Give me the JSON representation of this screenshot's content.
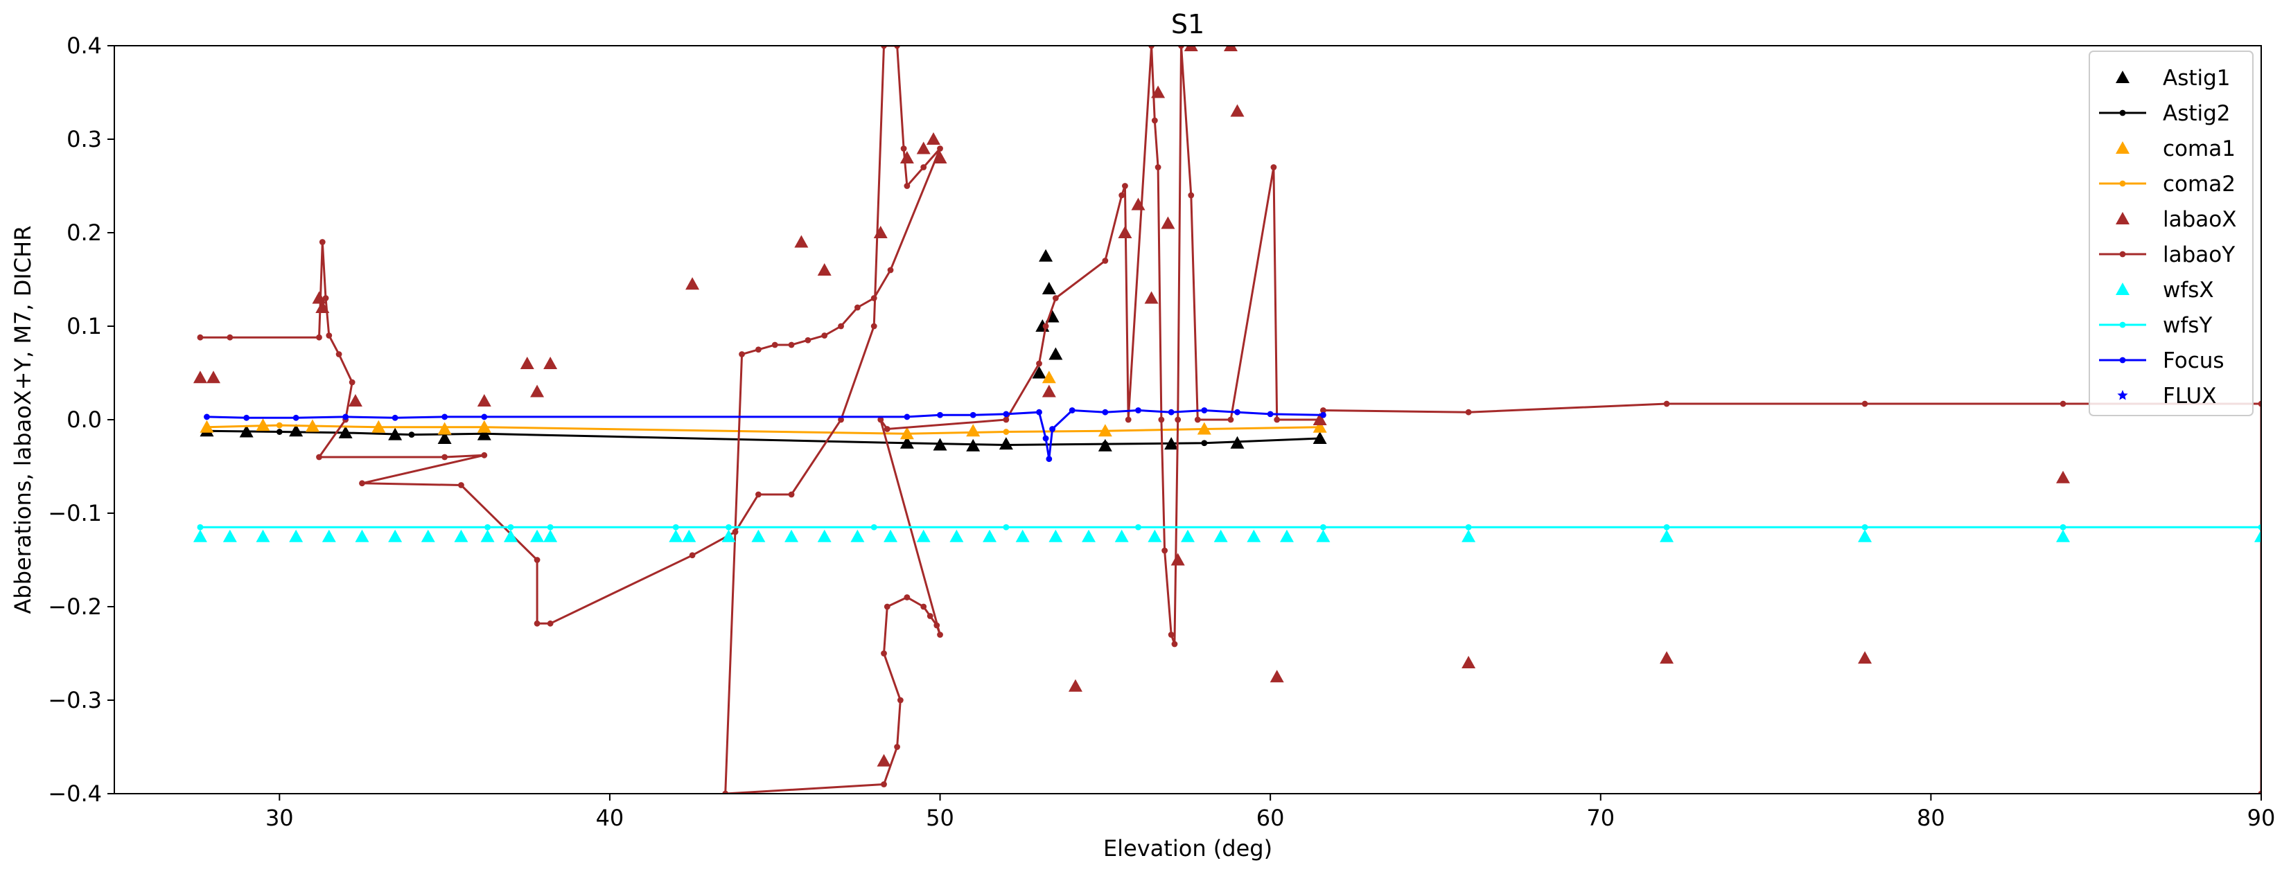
{
  "chart_data": {
    "type": "scatter",
    "title": "S1",
    "xlabel": "Elevation (deg)",
    "ylabel": "Abberations, labaoX+Y, M7, DICHR",
    "xlim": [
      25,
      90
    ],
    "ylim": [
      -0.4,
      0.4
    ],
    "xticks": [
      30,
      40,
      50,
      60,
      70,
      80,
      90
    ],
    "yticks": [
      -0.4,
      -0.3,
      -0.2,
      -0.1,
      0.0,
      0.1,
      0.2,
      0.3,
      0.4
    ],
    "legend_position": "top-right",
    "series": [
      {
        "name": "Astig1",
        "marker": "triangle",
        "line": false,
        "color": "#000000",
        "x": [
          27.8,
          29,
          30.5,
          32,
          33.5,
          35,
          36.2,
          49,
          50,
          51,
          52,
          53.0,
          53.1,
          53.2,
          53.3,
          53.4,
          53.5,
          55,
          57,
          59,
          61.5
        ],
        "y": [
          -0.012,
          -0.013,
          -0.012,
          -0.014,
          -0.016,
          -0.02,
          -0.016,
          -0.025,
          -0.027,
          -0.028,
          -0.026,
          0.05,
          0.1,
          0.175,
          0.14,
          0.11,
          0.07,
          -0.028,
          -0.026,
          -0.025,
          -0.02
        ]
      },
      {
        "name": "Astig2",
        "marker": "dot",
        "line": true,
        "color": "#000000",
        "x": [
          27.8,
          30,
          32,
          34,
          36.2,
          49,
          52,
          55,
          58,
          61.5
        ],
        "y": [
          -0.012,
          -0.013,
          -0.014,
          -0.016,
          -0.015,
          -0.025,
          -0.027,
          -0.026,
          -0.025,
          -0.02
        ]
      },
      {
        "name": "coma1",
        "marker": "triangle",
        "line": false,
        "color": "#ffa500",
        "x": [
          27.8,
          29.5,
          31,
          33,
          35,
          36.2,
          49,
          51,
          53.3,
          55,
          58,
          61.5
        ],
        "y": [
          -0.008,
          -0.006,
          -0.007,
          -0.008,
          -0.01,
          -0.008,
          -0.015,
          -0.012,
          0.045,
          -0.012,
          -0.01,
          -0.008
        ]
      },
      {
        "name": "coma2",
        "marker": "dot",
        "line": true,
        "color": "#ffa500",
        "x": [
          27.8,
          30,
          33,
          36.2,
          49,
          52,
          55,
          58,
          61.5
        ],
        "y": [
          -0.008,
          -0.006,
          -0.008,
          -0.008,
          -0.015,
          -0.013,
          -0.012,
          -0.01,
          -0.008
        ]
      },
      {
        "name": "labaoX",
        "marker": "triangle",
        "line": false,
        "color": "#a52a2a",
        "x": [
          27.6,
          28,
          31.2,
          31.3,
          32.3,
          36.2,
          37.5,
          37.8,
          38.2,
          42.5,
          45.8,
          46.5,
          48.2,
          48.3,
          49.0,
          49.5,
          49.8,
          50.0,
          53.3,
          54.1,
          55.6,
          56.0,
          56.4,
          56.6,
          56.9,
          57.2,
          57.6,
          58.8,
          59.0,
          60.2,
          61.5,
          66,
          72,
          78,
          84
        ],
        "y": [
          0.045,
          0.045,
          0.13,
          0.12,
          0.02,
          0.02,
          0.06,
          0.03,
          0.06,
          0.145,
          0.19,
          0.16,
          0.2,
          -0.365,
          0.28,
          0.29,
          0.3,
          0.28,
          0.03,
          -0.285,
          0.2,
          0.23,
          0.13,
          0.35,
          0.21,
          -0.15,
          0.4,
          0.4,
          0.33,
          -0.275,
          0.0,
          -0.26,
          -0.255,
          -0.255,
          -0.062
        ]
      },
      {
        "name": "labaoY",
        "marker": "dot",
        "line": true,
        "color": "#a52a2a",
        "x": [
          27.6,
          28.5,
          31.2,
          31.3,
          31.4,
          31.5,
          31.8,
          32.2,
          32.0,
          31.2,
          35,
          36.2,
          32.5,
          35.5,
          37.8,
          37.8,
          38.2,
          42.5,
          43.8,
          44.5,
          45.5,
          47,
          48,
          48.3,
          48.7,
          48.9,
          49.0,
          49.5,
          50.0,
          48.5,
          48.0,
          47.5,
          47.0,
          46.5,
          46.0,
          45.5,
          45.0,
          44.5,
          44.0,
          43.5,
          48.3,
          48.7,
          48.8,
          48.3,
          48.4,
          49.0,
          49.5,
          49.7,
          49.9,
          50.0,
          48.2,
          48.4,
          52,
          53.0,
          53.2,
          53.5,
          55.0,
          55.5,
          55.6,
          55.7,
          56.4,
          56.5,
          56.6,
          56.7,
          56.8,
          57.0,
          57.1,
          57.2,
          57.3,
          57.6,
          57.8,
          58.8,
          60.1,
          60.2,
          61.5,
          61.6,
          66,
          72,
          78,
          84,
          90,
          90
        ],
        "y": [
          0.088,
          0.088,
          0.088,
          0.19,
          0.13,
          0.09,
          0.07,
          0.04,
          0.0,
          -0.04,
          -0.04,
          -0.038,
          -0.068,
          -0.07,
          -0.15,
          -0.218,
          -0.218,
          -0.145,
          -0.12,
          -0.08,
          -0.08,
          0.0,
          0.1,
          0.4,
          0.4,
          0.29,
          0.25,
          0.27,
          0.29,
          0.16,
          0.13,
          0.12,
          0.1,
          0.09,
          0.085,
          0.08,
          0.08,
          0.075,
          0.07,
          -0.4,
          -0.39,
          -0.35,
          -0.3,
          -0.25,
          -0.2,
          -0.19,
          -0.2,
          -0.21,
          -0.22,
          -0.23,
          0.0,
          -0.01,
          0.0,
          0.06,
          0.1,
          0.13,
          0.17,
          0.24,
          0.25,
          0.0,
          0.4,
          0.32,
          0.27,
          0.0,
          -0.14,
          -0.23,
          -0.24,
          0.0,
          0.4,
          0.24,
          0.0,
          0.0,
          0.27,
          0.0,
          0.0,
          0.01,
          0.008,
          0.017,
          0.017,
          0.017,
          0.017,
          -0.4
        ]
      },
      {
        "name": "wfsX",
        "marker": "triangle",
        "line": false,
        "color": "#00ffff",
        "x": [
          27.6,
          28.5,
          29.5,
          30.5,
          31.5,
          32.5,
          33.5,
          34.5,
          35.5,
          36.3,
          37.0,
          37.8,
          38.2,
          42.0,
          42.4,
          43.6,
          44.5,
          45.5,
          46.5,
          47.5,
          48.5,
          49.5,
          50.5,
          51.5,
          52.5,
          53.5,
          54.5,
          55.5,
          56.5,
          57.5,
          58.5,
          59.5,
          60.5,
          61.6,
          66,
          72,
          78,
          84,
          90
        ],
        "y": [
          -0.125,
          -0.125,
          -0.125,
          -0.125,
          -0.125,
          -0.125,
          -0.125,
          -0.125,
          -0.125,
          -0.125,
          -0.125,
          -0.125,
          -0.125,
          -0.125,
          -0.125,
          -0.125,
          -0.125,
          -0.125,
          -0.125,
          -0.125,
          -0.125,
          -0.125,
          -0.125,
          -0.125,
          -0.125,
          -0.125,
          -0.125,
          -0.125,
          -0.125,
          -0.125,
          -0.125,
          -0.125,
          -0.125,
          -0.125,
          -0.125,
          -0.125,
          -0.125,
          -0.125,
          -0.125
        ]
      },
      {
        "name": "wfsY",
        "marker": "dot",
        "line": true,
        "color": "#00ffff",
        "x": [
          27.6,
          36.3,
          37.0,
          38.2,
          42.0,
          43.6,
          48,
          52,
          56,
          61.6,
          66,
          72,
          78,
          84,
          90
        ],
        "y": [
          -0.115,
          -0.115,
          -0.115,
          -0.115,
          -0.115,
          -0.115,
          -0.115,
          -0.115,
          -0.115,
          -0.115,
          -0.115,
          -0.115,
          -0.115,
          -0.115,
          -0.115
        ]
      },
      {
        "name": "Focus",
        "marker": "dot",
        "line": true,
        "color": "#0000ff",
        "x": [
          27.8,
          29,
          30.5,
          32,
          33.5,
          35,
          36.2,
          49,
          50,
          51,
          52,
          53.0,
          53.2,
          53.3,
          53.4,
          54,
          55,
          56,
          57,
          58,
          59,
          60,
          61.6
        ],
        "y": [
          0.003,
          0.002,
          0.002,
          0.003,
          0.002,
          0.003,
          0.003,
          0.003,
          0.005,
          0.005,
          0.006,
          0.008,
          -0.02,
          -0.042,
          -0.01,
          0.01,
          0.008,
          0.01,
          0.008,
          0.01,
          0.008,
          0.006,
          0.005
        ]
      },
      {
        "name": "FLUX",
        "marker": "star",
        "line": false,
        "color": "#0000ff",
        "x": [],
        "y": []
      }
    ]
  }
}
